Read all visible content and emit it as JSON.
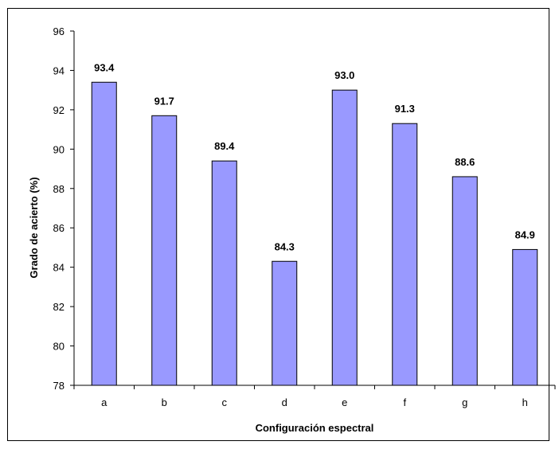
{
  "chart_data": {
    "type": "bar",
    "title": "",
    "xlabel": "Configuración espectral",
    "ylabel": "Grado de acierto (%)",
    "categories": [
      "a",
      "b",
      "c",
      "d",
      "e",
      "f",
      "g",
      "h"
    ],
    "values": [
      93.4,
      91.7,
      89.4,
      84.3,
      93.0,
      91.3,
      88.6,
      84.9
    ],
    "value_labels": [
      "93.4",
      "91.7",
      "89.4",
      "84.3",
      "93.0",
      "91.3",
      "88.6",
      "84.9"
    ],
    "ylim": [
      78,
      96
    ],
    "yticks": [
      78,
      80,
      82,
      84,
      86,
      88,
      90,
      92,
      94,
      96
    ],
    "grid": false,
    "legend": "none",
    "bar_color": "#9999FF",
    "bar_edge_color": "#000000"
  }
}
